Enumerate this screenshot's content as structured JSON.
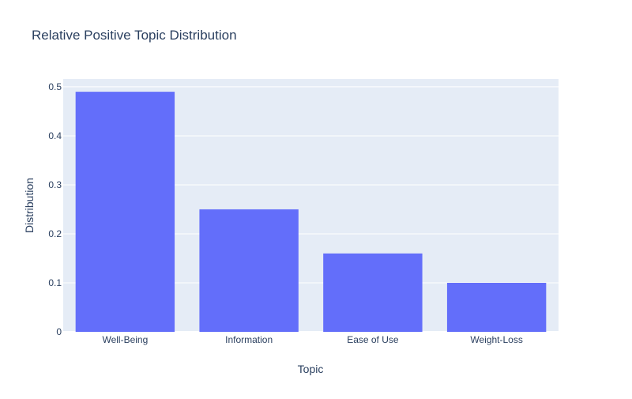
{
  "chart_data": {
    "type": "bar",
    "title": "Relative Positive Topic Distribution",
    "xlabel": "Topic",
    "ylabel": "Distribution",
    "categories": [
      "Well-Being",
      "Information",
      "Ease of Use",
      "Weight-Loss"
    ],
    "values": [
      0.49,
      0.25,
      0.16,
      0.1
    ],
    "ylim": [
      0,
      0.516
    ],
    "yticks": [
      0,
      0.1,
      0.2,
      0.3,
      0.4,
      0.5
    ],
    "ytick_labels": [
      "0",
      "0.1",
      "0.2",
      "0.3",
      "0.4",
      "0.5"
    ],
    "grid": true,
    "legend": "none",
    "colors": {
      "bar": "#636efa",
      "plot_background": "#e5ecf6",
      "gridline": "#ffffff",
      "text": "#2a3f5f"
    }
  }
}
